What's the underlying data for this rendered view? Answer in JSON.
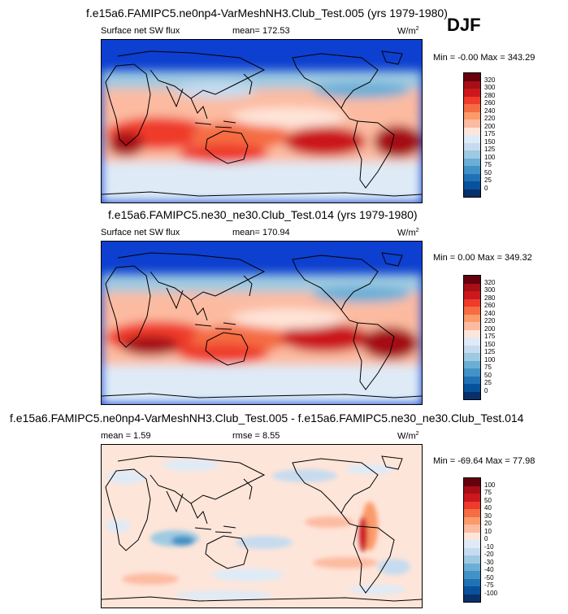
{
  "season": "DJF",
  "panels": [
    {
      "title": "f.e15a6.FAMIPC5.ne0np4-VarMeshNH3.Club_Test.005 (yrs 1979-1980)",
      "left_label": "Surface net SW flux",
      "center_label": "mean=  172.53",
      "units": "W/m",
      "units_exp": "2",
      "minmax": "Min =  -0.00 Max = 343.29",
      "levels": [
        "320",
        "300",
        "280",
        "260",
        "240",
        "220",
        "200",
        "175",
        "150",
        "125",
        "100",
        "75",
        "50",
        "25",
        "0"
      ],
      "colors": [
        "#67000d",
        "#a50f15",
        "#cb181d",
        "#ef3b2c",
        "#f46d43",
        "#fb9a6a",
        "#fcbba1",
        "#fee5d9",
        "#deebf7",
        "#c6dbef",
        "#9ecae1",
        "#6baed6",
        "#4292c6",
        "#2171b5",
        "#08519c",
        "#08306b"
      ]
    },
    {
      "title": "f.e15a6.FAMIPC5.ne30_ne30.Club_Test.014 (yrs 1979-1980)",
      "left_label": "Surface net SW flux",
      "center_label": "mean=  170.94",
      "units": "W/m",
      "units_exp": "2",
      "minmax": "Min =  0.00 Max = 349.32",
      "levels": [
        "320",
        "300",
        "280",
        "260",
        "240",
        "220",
        "200",
        "175",
        "150",
        "125",
        "100",
        "75",
        "50",
        "25",
        "0"
      ],
      "colors": [
        "#67000d",
        "#a50f15",
        "#cb181d",
        "#ef3b2c",
        "#f46d43",
        "#fb9a6a",
        "#fcbba1",
        "#fee5d9",
        "#deebf7",
        "#c6dbef",
        "#9ecae1",
        "#6baed6",
        "#4292c6",
        "#2171b5",
        "#08519c",
        "#08306b"
      ]
    },
    {
      "title": "f.e15a6.FAMIPC5.ne0np4-VarMeshNH3.Club_Test.005 - f.e15a6.FAMIPC5.ne30_ne30.Club_Test.014",
      "left_label": "mean =   1.59",
      "center_label": "rmse =   8.55",
      "units": "W/m",
      "units_exp": "2",
      "minmax": "Min = -69.64 Max =  77.98",
      "levels": [
        "100",
        "75",
        "50",
        "40",
        "30",
        "20",
        "10",
        "0",
        "-10",
        "-20",
        "-30",
        "-40",
        "-50",
        "-75",
        "-100"
      ],
      "colors": [
        "#67000d",
        "#a50f15",
        "#cb181d",
        "#ef3b2c",
        "#f46d43",
        "#fb9a6a",
        "#fcbba1",
        "#fee5d9",
        "#deebf7",
        "#c6dbef",
        "#9ecae1",
        "#6baed6",
        "#4292c6",
        "#2171b5",
        "#08519c",
        "#08306b"
      ]
    }
  ]
}
